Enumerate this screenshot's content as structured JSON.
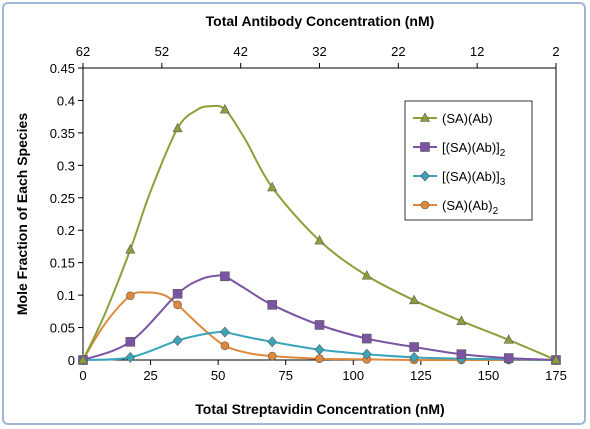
{
  "chart_data": {
    "type": "line",
    "title": "",
    "xlabel": "Total Streptavidin Concentration (nM)",
    "x2label": "Total Antibody Concentration (nM)",
    "ylabel": "Mole Fraction of Each Species",
    "xlim": [
      0,
      175
    ],
    "ylim": [
      0,
      0.45
    ],
    "x_ticks": [
      0,
      25,
      50,
      75,
      100,
      125,
      150,
      175
    ],
    "y_ticks": [
      0,
      0.05,
      0.1,
      0.15,
      0.2,
      0.25,
      0.3,
      0.35,
      0.4,
      0.45
    ],
    "y_tick_labels": [
      "0",
      "0.05",
      "0.1",
      "0.15",
      "0.2",
      "0.25",
      "0.3",
      "0.35",
      "0.4",
      "0.45"
    ],
    "x2_tick_labels": [
      "62",
      "52",
      "42",
      "32",
      "22",
      "12",
      "2"
    ],
    "x2_tick_positions": [
      0,
      32.3,
      64.6,
      96.9,
      129.2,
      161.5,
      193.8
    ],
    "legend_position": "top-right",
    "grid": false,
    "series": [
      {
        "name": "(SA)(Ab)",
        "color": "#8aa13a",
        "marker": "triangle",
        "x": [
          0,
          17.5,
          35,
          52.5,
          70,
          87.5,
          105,
          122.5,
          140,
          157.5,
          175
        ],
        "values": [
          0,
          0.17,
          0.357,
          0.386,
          0.266,
          0.184,
          0.13,
          0.092,
          0.06,
          0.031,
          0
        ],
        "curve": [
          [
            0,
            0
          ],
          [
            8,
            0.07
          ],
          [
            17.5,
            0.17
          ],
          [
            25,
            0.26
          ],
          [
            35,
            0.357
          ],
          [
            42,
            0.385
          ],
          [
            47,
            0.391
          ],
          [
            52.5,
            0.386
          ],
          [
            60,
            0.34
          ],
          [
            70,
            0.266
          ],
          [
            87.5,
            0.184
          ],
          [
            105,
            0.13
          ],
          [
            122.5,
            0.092
          ],
          [
            140,
            0.06
          ],
          [
            157.5,
            0.031
          ],
          [
            175,
            0
          ]
        ]
      },
      {
        "name": "[(SA)(Ab)]2",
        "name_base": "[(SA)(Ab)]",
        "name_sub": "2",
        "color": "#7b54a3",
        "marker": "square",
        "x": [
          0,
          17.5,
          35,
          52.5,
          70,
          87.5,
          105,
          122.5,
          140,
          157.5,
          175
        ],
        "values": [
          0,
          0.028,
          0.102,
          0.129,
          0.085,
          0.054,
          0.033,
          0.02,
          0.009,
          0.003,
          0
        ],
        "curve": [
          [
            0,
            0
          ],
          [
            17.5,
            0.028
          ],
          [
            35,
            0.102
          ],
          [
            44,
            0.125
          ],
          [
            50,
            0.13
          ],
          [
            52.5,
            0.129
          ],
          [
            60,
            0.11
          ],
          [
            70,
            0.085
          ],
          [
            87.5,
            0.054
          ],
          [
            105,
            0.033
          ],
          [
            122.5,
            0.02
          ],
          [
            140,
            0.009
          ],
          [
            157.5,
            0.003
          ],
          [
            175,
            0
          ]
        ]
      },
      {
        "name": "[(SA)(Ab)]3",
        "name_base": "[(SA)(Ab)]",
        "name_sub": "3",
        "color": "#3aa5ba",
        "marker": "diamond",
        "x": [
          0,
          17.5,
          35,
          52.5,
          70,
          87.5,
          105,
          122.5,
          140,
          157.5,
          175
        ],
        "values": [
          0,
          0.004,
          0.03,
          0.043,
          0.028,
          0.016,
          0.009,
          0.004,
          0.002,
          0.001,
          0
        ],
        "curve": [
          [
            0,
            0
          ],
          [
            17.5,
            0.004
          ],
          [
            35,
            0.03
          ],
          [
            45,
            0.04
          ],
          [
            50,
            0.043
          ],
          [
            52.5,
            0.043
          ],
          [
            60,
            0.036
          ],
          [
            70,
            0.028
          ],
          [
            87.5,
            0.016
          ],
          [
            105,
            0.009
          ],
          [
            122.5,
            0.004
          ],
          [
            140,
            0.002
          ],
          [
            157.5,
            0.001
          ],
          [
            175,
            0
          ]
        ]
      },
      {
        "name": "(SA)(Ab)2",
        "name_base": "(SA)(Ab)",
        "name_sub": "2",
        "color": "#e0883a",
        "marker": "circle",
        "x": [
          0,
          17.5,
          35,
          52.5,
          70,
          87.5,
          105,
          122.5,
          140,
          157.5,
          175
        ],
        "values": [
          0,
          0.099,
          0.085,
          0.022,
          0.006,
          0.002,
          0.001,
          0,
          0,
          0,
          0
        ],
        "curve": [
          [
            0,
            0
          ],
          [
            8,
            0.055
          ],
          [
            17.5,
            0.099
          ],
          [
            24,
            0.104
          ],
          [
            30,
            0.1
          ],
          [
            35,
            0.085
          ],
          [
            44,
            0.05
          ],
          [
            52.5,
            0.022
          ],
          [
            62,
            0.01
          ],
          [
            70,
            0.006
          ],
          [
            87.5,
            0.002
          ],
          [
            105,
            0.001
          ],
          [
            122.5,
            0
          ],
          [
            140,
            0
          ],
          [
            157.5,
            0
          ],
          [
            175,
            0
          ]
        ]
      }
    ]
  }
}
